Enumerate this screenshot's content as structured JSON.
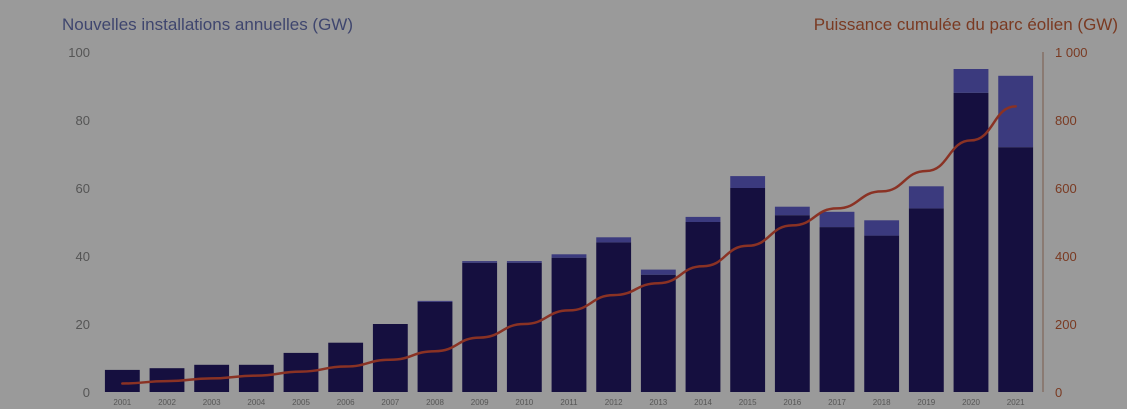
{
  "colors": {
    "background": "#9a9a9a",
    "offshore": "#150f3f",
    "onshore_top": "#3b3a7e",
    "cumulative_line": "#8a3224",
    "left_axis_text": "#3f466e",
    "right_axis_text": "#7a3a22"
  },
  "chart_data": {
    "type": "bar",
    "stacked": true,
    "title": "",
    "ylabel": "Nouvelles installations annuelles (GW)",
    "y2label": "Puissance cumulée du parc éolien (GW)",
    "ylim": [
      0,
      100
    ],
    "y2lim": [
      0,
      1000
    ],
    "yticks": [
      "0",
      "20",
      "40",
      "60",
      "80",
      "100"
    ],
    "y2ticks": [
      "0",
      "200",
      "400",
      "600",
      "800",
      "1 000"
    ],
    "categories": [
      "2001",
      "2002",
      "2003",
      "2004",
      "2005",
      "2006",
      "2007",
      "2008",
      "2009",
      "2010",
      "2011",
      "2012",
      "2013",
      "2014",
      "2015",
      "2016",
      "2017",
      "2018",
      "2019",
      "2020",
      "2021"
    ],
    "series": [
      {
        "kind": "bar",
        "values": [
          6.5,
          7,
          8,
          8,
          11.5,
          14.5,
          20,
          26.5,
          38,
          38,
          39.5,
          44,
          34.5,
          50,
          60,
          52,
          48.5,
          46,
          54,
          88,
          72
        ]
      },
      {
        "kind": "bar",
        "values": [
          0,
          0,
          0,
          0,
          0,
          0,
          0,
          0.3,
          0.5,
          0.5,
          1,
          1.5,
          1.5,
          1.5,
          3.5,
          2.5,
          4.5,
          4.5,
          6.5,
          7,
          21
        ]
      },
      {
        "kind": "line",
        "axis": "right",
        "values": [
          25,
          32,
          40,
          48,
          60,
          75,
          95,
          120,
          160,
          200,
          240,
          285,
          320,
          370,
          430,
          490,
          540,
          590,
          650,
          740,
          840
        ]
      }
    ],
    "grid": false,
    "legend": "none"
  }
}
